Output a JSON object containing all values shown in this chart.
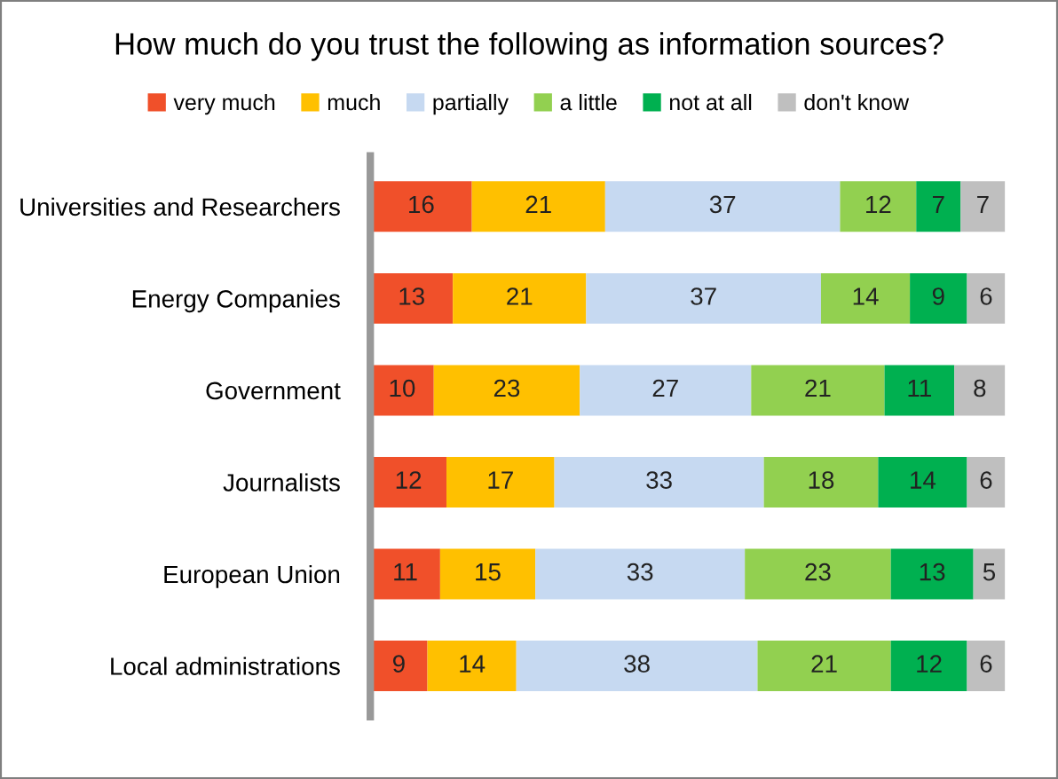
{
  "chart_data": {
    "type": "bar",
    "orientation": "horizontal",
    "stacked": true,
    "data_labels": true,
    "legend": "top",
    "grid": false,
    "title": "How much do you trust the following as information sources?",
    "categories": [
      "Universities and Researchers",
      "Energy Companies",
      "Government",
      "Journalists",
      "European Union",
      "Local administrations"
    ],
    "series": [
      {
        "name": "very much",
        "color": "#f0502a",
        "values": [
          16,
          13,
          10,
          12,
          11,
          9
        ]
      },
      {
        "name": "much",
        "color": "#ffc000",
        "values": [
          21,
          21,
          23,
          17,
          15,
          14
        ]
      },
      {
        "name": "partially",
        "color": "#c6d9f1",
        "values": [
          37,
          37,
          27,
          33,
          33,
          38
        ]
      },
      {
        "name": "a little",
        "color": "#92d050",
        "values": [
          12,
          14,
          21,
          18,
          23,
          21
        ]
      },
      {
        "name": "not at all",
        "color": "#00b050",
        "values": [
          7,
          9,
          11,
          14,
          13,
          12
        ]
      },
      {
        "name": "don't know",
        "color": "#bfbfbf",
        "values": [
          7,
          6,
          8,
          6,
          5,
          6
        ]
      }
    ]
  }
}
